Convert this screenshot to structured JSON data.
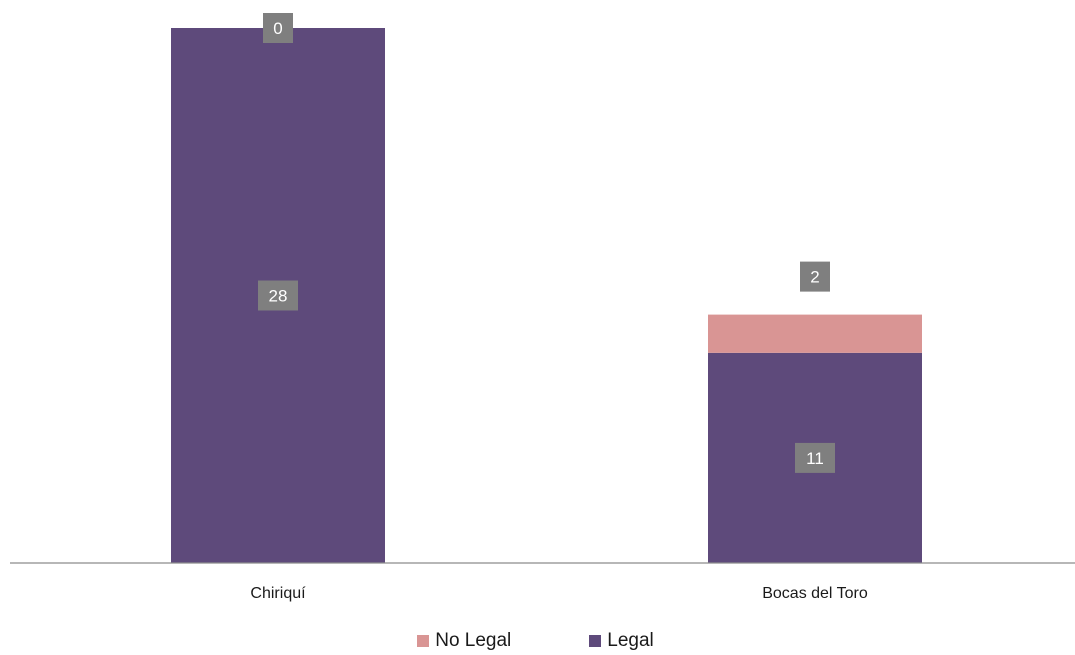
{
  "chart_data": {
    "type": "bar",
    "stacked": true,
    "categories": [
      "Chiriquí",
      "Bocas del Toro"
    ],
    "series": [
      {
        "name": "Legal",
        "values": [
          28,
          11
        ],
        "color": "#5e4a7b"
      },
      {
        "name": "No Legal",
        "values": [
          0,
          2
        ],
        "color": "#d99594"
      }
    ],
    "title": "",
    "xlabel": "",
    "ylabel": "",
    "ylim": [
      0,
      28
    ],
    "grid": false,
    "legend_position": "bottom"
  },
  "legend": {
    "items": [
      {
        "label": "No Legal",
        "color": "#d99594"
      },
      {
        "label": "Legal",
        "color": "#5e4a7b"
      }
    ]
  },
  "colors": {
    "axis": "#8c8c8c",
    "label_box": "#7f7f7f"
  }
}
